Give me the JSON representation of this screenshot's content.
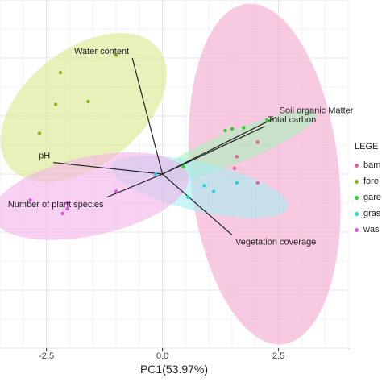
{
  "chart_data": {
    "type": "scatter",
    "xlabel": "PC1(53.97%)",
    "ylabel": "",
    "xlim": [
      -3.5,
      4.0
    ],
    "ylim": [
      -3.0,
      3.0
    ],
    "xticks": [
      -2.5,
      0.0,
      2.5
    ],
    "xtick_labels": [
      "-2.5",
      "0.0",
      "2.5"
    ],
    "grid": true,
    "legend_title": "LEGE",
    "legend_position": "right",
    "series": [
      {
        "name": "bam",
        "color": "#e8609a",
        "points": [
          [
            2.05,
            0.55
          ],
          [
            1.6,
            0.3
          ],
          [
            1.55,
            0.1
          ],
          [
            2.05,
            -0.15
          ]
        ],
        "ellipse": {
          "cx": 2.2,
          "cy": 0.0,
          "rx": 1.6,
          "ry": 2.95,
          "angle": 6,
          "fill": "#f2a6cf"
        }
      },
      {
        "name": "fore",
        "color": "#8ab31a",
        "points": [
          [
            -1.0,
            2.05
          ],
          [
            -2.2,
            1.75
          ],
          [
            -1.6,
            1.25
          ],
          [
            -2.3,
            1.2
          ],
          [
            -2.65,
            0.7
          ]
        ],
        "ellipse": {
          "cx": -1.7,
          "cy": 1.15,
          "rx": 2.05,
          "ry": 1.0,
          "angle": 38,
          "fill": "#d9e88a"
        }
      },
      {
        "name": "gare",
        "color": "#2bd02b",
        "points": [
          [
            2.25,
            0.93
          ],
          [
            1.75,
            0.8
          ],
          [
            1.5,
            0.78
          ],
          [
            1.35,
            0.75
          ],
          [
            0.45,
            0.13
          ]
        ],
        "ellipse": {
          "cx": 1.6,
          "cy": 0.48,
          "rx": 1.85,
          "ry": 0.28,
          "angle": 22,
          "fill": "#a8f0b8"
        }
      },
      {
        "name": "gras",
        "color": "#22d4e0",
        "points": [
          [
            -0.15,
            0.0
          ],
          [
            0.9,
            -0.2
          ],
          [
            1.1,
            -0.3
          ],
          [
            0.55,
            -0.4
          ],
          [
            1.6,
            -0.15
          ]
        ],
        "ellipse": {
          "cx": 0.8,
          "cy": -0.22,
          "rx": 1.95,
          "ry": 0.42,
          "angle": -13,
          "fill": "#a6eef2"
        }
      },
      {
        "name": "was",
        "color": "#d655d6",
        "points": [
          [
            -2.85,
            -0.45
          ],
          [
            -2.05,
            -0.5
          ],
          [
            -2.05,
            -0.6
          ],
          [
            -2.15,
            -0.68
          ],
          [
            -1.0,
            -0.3
          ]
        ],
        "ellipse": {
          "cx": -1.55,
          "cy": -0.38,
          "rx": 2.15,
          "ry": 0.68,
          "angle": 12,
          "fill": "#f3b2ea"
        }
      }
    ],
    "vectors": [
      {
        "label": "Water content",
        "x": -0.65,
        "y": 2.0
      },
      {
        "label": "Soil organic Matter",
        "x": 2.45,
        "y": 0.98
      },
      {
        "label": "Total carbon",
        "x": 2.2,
        "y": 0.82
      },
      {
        "label": "pH",
        "x": -2.35,
        "y": 0.2
      },
      {
        "label": "Number of plant species",
        "x": -1.2,
        "y": -0.4
      },
      {
        "label": "Vegetation coverage",
        "x": 1.5,
        "y": -1.05
      }
    ]
  }
}
